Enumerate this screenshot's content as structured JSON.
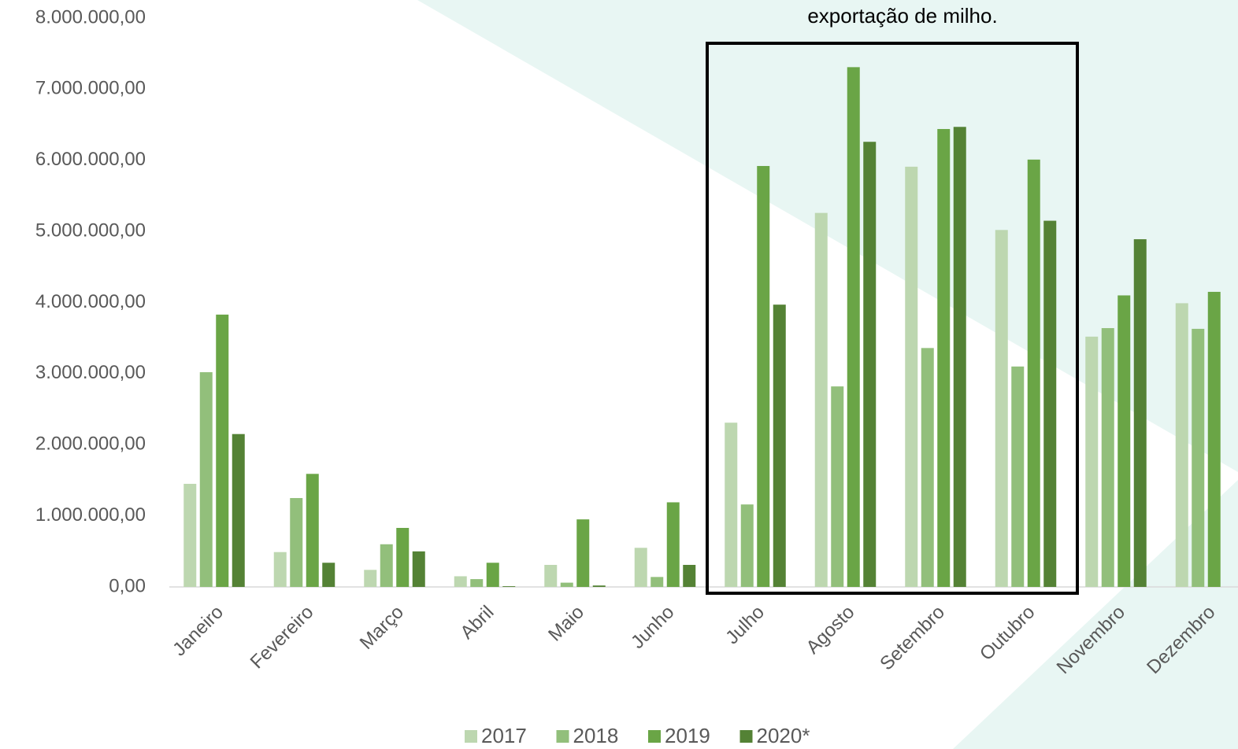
{
  "chart_data": {
    "type": "bar",
    "annotation": "exportação de milho.",
    "categories": [
      "Janeiro",
      "Fevereiro",
      "Março",
      "Abril",
      "Maio",
      "Junho",
      "Julho",
      "Agosto",
      "Setembro",
      "Outubro",
      "Novembro",
      "Dezembro"
    ],
    "series": [
      {
        "name": "2017",
        "color": "#bdd7b0",
        "values": [
          1450000,
          490000,
          240000,
          150000,
          310000,
          550000,
          2310000,
          5260000,
          5910000,
          5020000,
          3520000,
          3990000
        ]
      },
      {
        "name": "2018",
        "color": "#92bf7b",
        "values": [
          3020000,
          1250000,
          600000,
          110000,
          60000,
          140000,
          1160000,
          2820000,
          3360000,
          3100000,
          3640000,
          3630000
        ]
      },
      {
        "name": "2019",
        "color": "#6aa546",
        "values": [
          3830000,
          1590000,
          830000,
          340000,
          950000,
          1190000,
          5920000,
          7310000,
          6440000,
          6010000,
          4100000,
          4150000
        ]
      },
      {
        "name": "2020*",
        "color": "#548235",
        "values": [
          2150000,
          340000,
          500000,
          10000,
          20000,
          310000,
          3970000,
          6260000,
          6470000,
          5150000,
          4890000,
          null
        ]
      }
    ],
    "ylim": [
      0,
      8000000
    ],
    "yticks": [
      {
        "value": 0,
        "label": "0,00"
      },
      {
        "value": 1000000,
        "label": "1.000.000,00"
      },
      {
        "value": 2000000,
        "label": "2.000.000,00"
      },
      {
        "value": 3000000,
        "label": "3.000.000,00"
      },
      {
        "value": 4000000,
        "label": "4.000.000,00"
      },
      {
        "value": 5000000,
        "label": "5.000.000,00"
      },
      {
        "value": 6000000,
        "label": "6.000.000,00"
      },
      {
        "value": 7000000,
        "label": "7.000.000,00"
      },
      {
        "value": 8000000,
        "label": "8.000.000,00"
      }
    ],
    "legend": "bottom"
  }
}
